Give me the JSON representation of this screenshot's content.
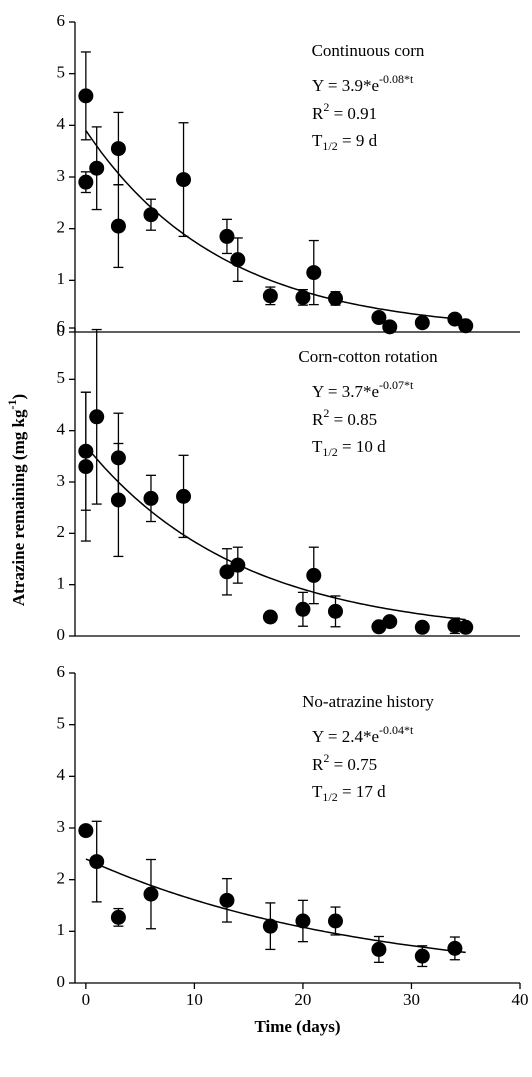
{
  "chart_data": [
    {
      "type": "scatter",
      "title": "Continuous corn",
      "equation": {
        "base": "Y = 3.9*e",
        "sup": "-0.08*t"
      },
      "r2": {
        "base": "R",
        "sup": "2",
        "rest": " = 0.91"
      },
      "half_life": {
        "base": "T",
        "sub": "1/2",
        "rest": " = 9 d"
      },
      "fit": {
        "a": 3.9,
        "k": -0.08,
        "x_range": [
          0,
          35
        ]
      },
      "x": [
        0,
        0,
        1,
        3,
        3,
        6,
        9,
        13,
        14,
        17,
        20,
        21,
        23,
        27,
        28,
        31,
        34,
        35
      ],
      "values": [
        2.9,
        4.57,
        3.17,
        3.55,
        2.05,
        2.27,
        2.95,
        1.85,
        1.4,
        0.7,
        0.67,
        1.15,
        0.65,
        0.28,
        0.1,
        0.18,
        0.25,
        0.12
      ],
      "errors": [
        0.2,
        0.85,
        0.8,
        0.7,
        0.8,
        0.3,
        1.1,
        0.33,
        0.42,
        0.17,
        0.15,
        0.62,
        0.13,
        0.05,
        0,
        0,
        0.05,
        0
      ],
      "color": "#000000",
      "xlim": [
        -1,
        40
      ],
      "ylim": [
        0,
        6
      ],
      "yticks": [
        0,
        1,
        2,
        3,
        4,
        5,
        6
      ]
    },
    {
      "type": "scatter",
      "title": "Corn-cotton rotation",
      "equation": {
        "base": "Y = 3.7*e",
        "sup": "-0.07*t"
      },
      "r2": {
        "base": "R",
        "sup": "2",
        "rest": " = 0.85"
      },
      "half_life": {
        "base": "T",
        "sub": "1/2",
        "rest": " = 10 d"
      },
      "fit": {
        "a": 3.7,
        "k": -0.07,
        "x_range": [
          0,
          35
        ]
      },
      "y_label": {
        "base": "Atrazine remaining (mg kg",
        "sup": "-1",
        "rest": ")"
      },
      "x": [
        0,
        0,
        1,
        3,
        3,
        6,
        9,
        13,
        14,
        17,
        20,
        21,
        23,
        27,
        28,
        31,
        34,
        35
      ],
      "values": [
        3.3,
        3.6,
        4.27,
        3.47,
        2.65,
        2.68,
        2.72,
        1.25,
        1.38,
        0.37,
        0.52,
        1.18,
        0.48,
        0.18,
        0.28,
        0.17,
        0.2,
        0.17
      ],
      "errors": [
        1.45,
        1.15,
        1.7,
        0.87,
        1.1,
        0.45,
        0.8,
        0.45,
        0.35,
        0.1,
        0.33,
        0.55,
        0.3,
        0.05,
        0.05,
        0.1,
        0.15,
        0
      ],
      "color": "#000000",
      "xlim": [
        -1,
        40
      ],
      "ylim": [
        0,
        6
      ],
      "yticks": [
        0,
        1,
        2,
        3,
        4,
        5,
        6
      ]
    },
    {
      "type": "scatter",
      "title": "No-atrazine history",
      "equation": {
        "base": "Y = 2.4*e",
        "sup": "-0.04*t"
      },
      "r2": {
        "base": "R",
        "sup": "2",
        "rest": " = 0.75"
      },
      "half_life": {
        "base": "T",
        "sub": "1/2",
        "rest": " = 17 d"
      },
      "fit": {
        "a": 2.4,
        "k": -0.04,
        "x_range": [
          0,
          35
        ]
      },
      "x_label": "Time (days)",
      "x": [
        0,
        1,
        3,
        6,
        13,
        17,
        20,
        23,
        27,
        31,
        34
      ],
      "values": [
        2.95,
        2.35,
        1.27,
        1.72,
        1.6,
        1.1,
        1.2,
        1.2,
        0.65,
        0.52,
        0.67
      ],
      "errors": [
        0.05,
        0.78,
        0.17,
        0.67,
        0.42,
        0.45,
        0.4,
        0.27,
        0.25,
        0.2,
        0.22
      ],
      "color": "#000000",
      "xlim": [
        -1,
        40
      ],
      "ylim": [
        0,
        6
      ],
      "yticks": [
        0,
        1,
        2,
        3,
        4,
        5,
        6
      ],
      "xticks": [
        0,
        10,
        20,
        30,
        40
      ]
    }
  ]
}
